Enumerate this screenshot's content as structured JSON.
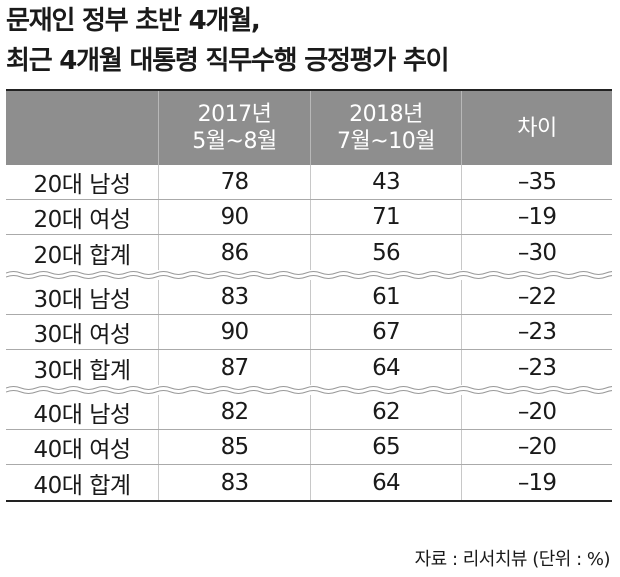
{
  "title": {
    "line1": "문재인 정부 초반 4개월,",
    "line2": "최근 4개월 대통령 직무수행 긍정평가 추이"
  },
  "table": {
    "headers": [
      {
        "line1": "",
        "line2": ""
      },
      {
        "line1": "2017년",
        "line2": "5월~8월"
      },
      {
        "line1": "2018년",
        "line2": "7월~10월"
      },
      {
        "line1": "차이",
        "line2": ""
      }
    ],
    "groups": [
      [
        {
          "label": "20대 남성",
          "v2017": "78",
          "v2018": "43",
          "diff": "–35"
        },
        {
          "label": "20대 여성",
          "v2017": "90",
          "v2018": "71",
          "diff": "–19"
        },
        {
          "label": "20대 합계",
          "v2017": "86",
          "v2018": "56",
          "diff": "–30"
        }
      ],
      [
        {
          "label": "30대 남성",
          "v2017": "83",
          "v2018": "61",
          "diff": "–22"
        },
        {
          "label": "30대 여성",
          "v2017": "90",
          "v2018": "67",
          "diff": "–23"
        },
        {
          "label": "30대 합계",
          "v2017": "87",
          "v2018": "64",
          "diff": "–23"
        }
      ],
      [
        {
          "label": "40대 남성",
          "v2017": "82",
          "v2018": "62",
          "diff": "–20"
        },
        {
          "label": "40대 여성",
          "v2017": "85",
          "v2018": "65",
          "diff": "–20"
        },
        {
          "label": "40대 합계",
          "v2017": "83",
          "v2018": "64",
          "diff": "–19"
        }
      ]
    ]
  },
  "source": "자료 : 리서치뷰 (단위 : %)"
}
